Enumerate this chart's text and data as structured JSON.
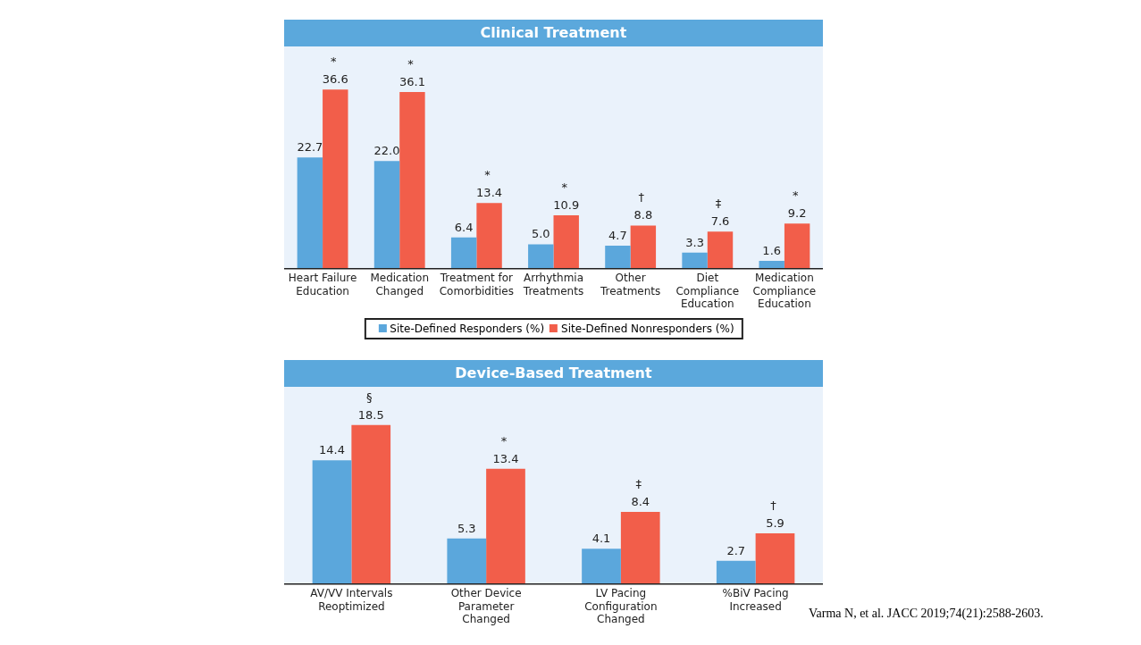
{
  "chart_data": [
    {
      "type": "bar",
      "title": "Clinical Treatment",
      "categories": [
        "Heart Failure Education",
        "Medication Changed",
        "Treatment for Comorbidities",
        "Arrhythmia Treatments",
        "Other Treatments",
        "Diet Compliance Education",
        "Medication Compliance Education"
      ],
      "series": [
        {
          "name": "Site-Defined Responders (%)",
          "color": "#5ba7dc",
          "values": [
            22.7,
            22.0,
            6.4,
            5.0,
            4.7,
            3.3,
            1.6
          ],
          "value_labels": [
            "22.7",
            "22.0",
            "6.4",
            "5.0",
            "4.7",
            "3.3",
            "1.6"
          ]
        },
        {
          "name": "Site-Defined Nonresponders (%)",
          "color": "#f25e4a",
          "values": [
            36.6,
            36.1,
            13.4,
            10.9,
            8.8,
            7.6,
            9.2
          ],
          "value_labels": [
            "36.6",
            "36.1",
            "13.4",
            "10.9",
            "8.8",
            "7.6",
            "9.2"
          ]
        }
      ],
      "legend": "bottom",
      "grid": false,
      "annotations": [
        {
          "text": "*",
          "x": "Heart Failure Education",
          "y": 36.6
        },
        {
          "text": "*",
          "x": "Medication Changed",
          "y": 36.1
        },
        {
          "text": "*",
          "x": "Treatment for Comorbidities",
          "y": 13.4
        },
        {
          "text": "*",
          "x": "Arrhythmia Treatments",
          "y": 10.9
        },
        {
          "text": "†",
          "x": "Other Treatments",
          "y": 8.8
        },
        {
          "text": "‡",
          "x": "Diet Compliance Education",
          "y": 7.6
        },
        {
          "text": "*",
          "x": "Medication Compliance Education",
          "y": 9.2
        }
      ]
    },
    {
      "type": "bar",
      "title": "Device-Based Treatment",
      "categories": [
        "AV/VV Intervals Reoptimized",
        "Other Device Parameter Changed",
        "LV Pacing Configuration Changed",
        "%BiV Pacing Increased"
      ],
      "series": [
        {
          "color": "#5ba7dc",
          "values": [
            14.4,
            5.3,
            4.1,
            2.7
          ]
        },
        {
          "color": "#f25e4a",
          "values": [
            18.5,
            13.4,
            8.4,
            5.9
          ]
        }
      ],
      "data_labels": true,
      "grid": false,
      "annotations": [
        {
          "text": "§",
          "x": "AV/VV Intervals Reoptimized",
          "y": 18.5
        },
        {
          "text": "*",
          "x": "Other Device Parameter Changed",
          "y": 13.4
        },
        {
          "text": "‡",
          "x": "LV Pacing Configuration Changed",
          "y": 8.4
        },
        {
          "text": "†",
          "x": "%BiV Pacing Increased",
          "y": 5.9
        },
        "Varma N, et al. JACC 2019;74(21):2588-2603."
      ]
    }
  ]
}
